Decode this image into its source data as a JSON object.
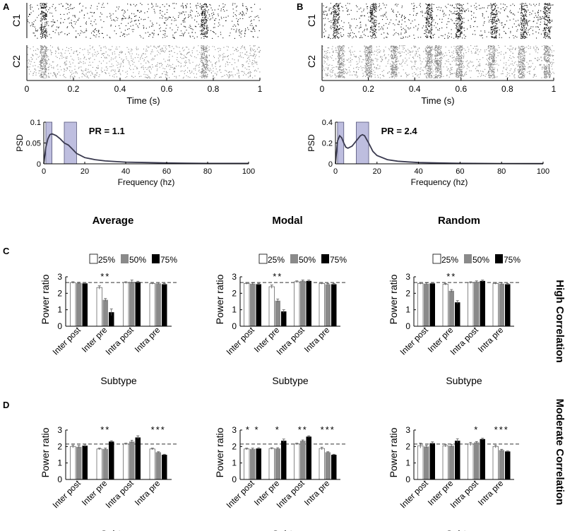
{
  "colors": {
    "white_bar": "#ffffff",
    "gray_bar": "#8a8a8a",
    "black_bar": "#000000",
    "band": "#9b9bce",
    "psd_line": "#3a3a4f",
    "raster_gray": "#888888"
  },
  "panel_letters": {
    "a": "A",
    "b": "B",
    "c": "C",
    "d": "D"
  },
  "column_titles": [
    "Average",
    "Modal",
    "Random"
  ],
  "row_titles": {
    "c": "High Correlation",
    "d": "Moderate Correlation"
  },
  "legend": {
    "labels": [
      "25%",
      "50%",
      "75%"
    ]
  },
  "chart_data": [
    {
      "id": "raster-A",
      "type": "scatter",
      "rows": [
        "C1",
        "C2"
      ],
      "xlabel": "Time (s)",
      "xlim": [
        0,
        1
      ],
      "xticks": [
        "0",
        "0.2",
        "0.4",
        "0.6",
        "0.8",
        "1"
      ],
      "burst_times_s": [
        [
          0.07,
          0.76
        ],
        [
          0.07,
          0.76
        ]
      ]
    },
    {
      "id": "raster-B",
      "type": "scatter",
      "rows": [
        "C1",
        "C2"
      ],
      "xlabel": "Time (s)",
      "xlim": [
        0,
        1
      ],
      "xticks": [
        "0",
        "0.2",
        "0.4",
        "0.6",
        "0.8",
        "1"
      ],
      "burst_times_s": [
        [
          0.06,
          0.22,
          0.46,
          0.59,
          0.74,
          0.87,
          0.97
        ],
        [
          0.08,
          0.2,
          0.31,
          0.46,
          0.5,
          0.59,
          0.73,
          0.86,
          0.97
        ]
      ]
    },
    {
      "id": "psd-A",
      "type": "line",
      "xlabel": "Frequency (hz)",
      "ylabel": "PSD",
      "xlim": [
        0,
        100
      ],
      "ylim": [
        0,
        0.1
      ],
      "xticks": [
        "0",
        "20",
        "40",
        "60",
        "80",
        "100"
      ],
      "yticks": [
        "0",
        "0.05",
        "0.1"
      ],
      "bands_hz": [
        [
          1,
          4
        ],
        [
          10,
          16
        ]
      ],
      "annotation": "PR = 1.1",
      "x": [
        0,
        1,
        2,
        3,
        4,
        6,
        8,
        10,
        12,
        14,
        16,
        18,
        20,
        25,
        30,
        40,
        50,
        60,
        70,
        80,
        90,
        100
      ],
      "y": [
        0.0,
        0.04,
        0.06,
        0.07,
        0.072,
        0.068,
        0.06,
        0.05,
        0.045,
        0.035,
        0.025,
        0.02,
        0.015,
        0.01,
        0.007,
        0.004,
        0.003,
        0.002,
        0.0015,
        0.001,
        0.001,
        0.001
      ]
    },
    {
      "id": "psd-B",
      "type": "line",
      "xlabel": "Frequency (hz)",
      "ylabel": "PSD",
      "xlim": [
        0,
        100
      ],
      "ylim": [
        0,
        0.4
      ],
      "xticks": [
        "0",
        "20",
        "40",
        "60",
        "80",
        "100"
      ],
      "yticks": [
        "0",
        "0.2",
        "0.4"
      ],
      "bands_hz": [
        [
          1,
          4
        ],
        [
          10,
          16
        ]
      ],
      "annotation": "PR = 2.4",
      "x": [
        0,
        1,
        2,
        3,
        4,
        5,
        6,
        8,
        10,
        12,
        13,
        14,
        16,
        18,
        20,
        25,
        30,
        35,
        40,
        50,
        60,
        80,
        100
      ],
      "y": [
        0.0,
        0.22,
        0.27,
        0.25,
        0.2,
        0.16,
        0.15,
        0.17,
        0.22,
        0.27,
        0.28,
        0.27,
        0.2,
        0.12,
        0.08,
        0.04,
        0.025,
        0.018,
        0.012,
        0.008,
        0.005,
        0.003,
        0.002
      ]
    },
    {
      "id": "C-average",
      "type": "bar",
      "row": "C",
      "column": "Average",
      "ylabel": "Power ratio",
      "xlabel": "Subtype",
      "ylim": [
        0,
        3
      ],
      "yticks": [
        "0",
        "1",
        "2",
        "3"
      ],
      "baseline": 2.65,
      "categories": [
        "Inter post",
        "Inter pre",
        "Intra post",
        "Intra pre"
      ],
      "significance": [
        "",
        "**",
        "",
        ""
      ],
      "series": [
        {
          "name": "25%",
          "values": [
            2.65,
            2.35,
            2.65,
            2.6
          ],
          "errors": [
            0.05,
            0.1,
            0.05,
            0.05
          ]
        },
        {
          "name": "50%",
          "values": [
            2.62,
            1.6,
            2.7,
            2.6
          ],
          "errors": [
            0.05,
            0.08,
            0.1,
            0.05
          ]
        },
        {
          "name": "75%",
          "values": [
            2.6,
            0.85,
            2.68,
            2.55
          ],
          "errors": [
            0.05,
            0.2,
            0.05,
            0.05
          ]
        }
      ]
    },
    {
      "id": "C-modal",
      "type": "bar",
      "row": "C",
      "column": "Modal",
      "ylabel": "Power ratio",
      "xlabel": "Subtype",
      "ylim": [
        0,
        3
      ],
      "yticks": [
        "0",
        "1",
        "2",
        "3"
      ],
      "baseline": 2.65,
      "categories": [
        "Inter post",
        "Inter pre",
        "Intra post",
        "Intra pre"
      ],
      "significance": [
        "",
        "**",
        "",
        ""
      ],
      "series": [
        {
          "name": "25%",
          "values": [
            2.6,
            2.4,
            2.7,
            2.6
          ],
          "errors": [
            0.05,
            0.1,
            0.05,
            0.05
          ]
        },
        {
          "name": "50%",
          "values": [
            2.58,
            1.55,
            2.75,
            2.55
          ],
          "errors": [
            0.05,
            0.1,
            0.05,
            0.05
          ]
        },
        {
          "name": "75%",
          "values": [
            2.55,
            0.9,
            2.75,
            2.55
          ],
          "errors": [
            0.05,
            0.1,
            0.05,
            0.05
          ]
        }
      ]
    },
    {
      "id": "C-random",
      "type": "bar",
      "row": "C",
      "column": "Random",
      "ylabel": "Power ratio",
      "xlabel": "Subtype",
      "ylim": [
        0,
        3
      ],
      "yticks": [
        "0",
        "1",
        "2",
        "3"
      ],
      "baseline": 2.65,
      "categories": [
        "Inter post",
        "Inter pre",
        "Intra post",
        "Intra pre"
      ],
      "significance": [
        "",
        "**",
        "",
        ""
      ],
      "series": [
        {
          "name": "25%",
          "values": [
            2.6,
            2.55,
            2.65,
            2.6
          ],
          "errors": [
            0.05,
            0.05,
            0.05,
            0.05
          ]
        },
        {
          "name": "50%",
          "values": [
            2.58,
            2.15,
            2.7,
            2.58
          ],
          "errors": [
            0.05,
            0.08,
            0.05,
            0.05
          ]
        },
        {
          "name": "75%",
          "values": [
            2.6,
            1.45,
            2.75,
            2.55
          ],
          "errors": [
            0.05,
            0.1,
            0.05,
            0.05
          ]
        }
      ]
    },
    {
      "id": "D-average",
      "type": "bar",
      "row": "D",
      "column": "Average",
      "ylabel": "Power ratio",
      "xlabel": "Subtype",
      "ylim": [
        0,
        3
      ],
      "yticks": [
        "0",
        "1",
        "2",
        "3"
      ],
      "baseline": 2.15,
      "categories": [
        "Inter post",
        "Inter pre",
        "Intra post",
        "Intra pre"
      ],
      "significance": [
        "",
        "**",
        "",
        "***"
      ],
      "series": [
        {
          "name": "25%",
          "values": [
            2.0,
            1.85,
            2.15,
            1.85
          ],
          "errors": [
            0.08,
            0.05,
            0.05,
            0.05
          ]
        },
        {
          "name": "50%",
          "values": [
            1.98,
            1.85,
            2.3,
            1.65
          ],
          "errors": [
            0.08,
            0.05,
            0.08,
            0.03
          ]
        },
        {
          "name": "75%",
          "values": [
            2.05,
            2.3,
            2.55,
            1.5
          ],
          "errors": [
            0.08,
            0.05,
            0.1,
            0.03
          ]
        }
      ]
    },
    {
      "id": "D-modal",
      "type": "bar",
      "row": "D",
      "column": "Modal",
      "ylabel": "Power ratio",
      "xlabel": "Subtype",
      "ylim": [
        0,
        3
      ],
      "yticks": [
        "0",
        "1",
        "2",
        "3"
      ],
      "baseline": 2.15,
      "categories": [
        "Inter post",
        "Inter pre",
        "Intra post",
        "Intra pre"
      ],
      "significance": [
        "* *",
        "*",
        "**",
        "***"
      ],
      "series": [
        {
          "name": "25%",
          "values": [
            1.85,
            1.88,
            2.15,
            1.88
          ],
          "errors": [
            0.05,
            0.05,
            0.05,
            0.08
          ]
        },
        {
          "name": "50%",
          "values": [
            1.85,
            1.88,
            2.35,
            1.65
          ],
          "errors": [
            0.05,
            0.05,
            0.05,
            0.03
          ]
        },
        {
          "name": "75%",
          "values": [
            1.88,
            2.35,
            2.6,
            1.5
          ],
          "errors": [
            0.05,
            0.1,
            0.05,
            0.03
          ]
        }
      ]
    },
    {
      "id": "D-random",
      "type": "bar",
      "row": "D",
      "column": "Random",
      "ylabel": "Power ratio",
      "xlabel": "Subtype",
      "ylim": [
        0,
        3
      ],
      "yticks": [
        "0",
        "1",
        "2",
        "3"
      ],
      "baseline": 2.15,
      "categories": [
        "Inter post",
        "Inter pre",
        "Intra post",
        "Intra pre"
      ],
      "significance": [
        "",
        "",
        "*",
        "***"
      ],
      "series": [
        {
          "name": "25%",
          "values": [
            2.05,
            2.05,
            2.15,
            2.0
          ],
          "errors": [
            0.15,
            0.08,
            0.1,
            0.08
          ]
        },
        {
          "name": "50%",
          "values": [
            2.0,
            2.05,
            2.25,
            1.78
          ],
          "errors": [
            0.08,
            0.08,
            0.05,
            0.05
          ]
        },
        {
          "name": "75%",
          "values": [
            2.2,
            2.35,
            2.45,
            1.7
          ],
          "errors": [
            0.08,
            0.12,
            0.05,
            0.03
          ]
        }
      ]
    }
  ]
}
